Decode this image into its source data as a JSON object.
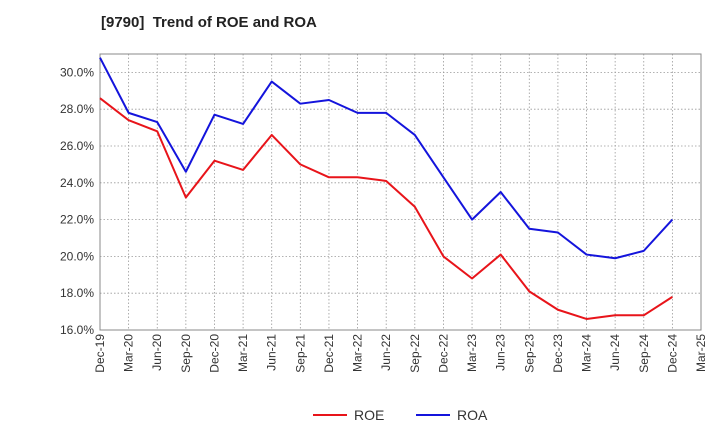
{
  "chart_data": {
    "type": "line",
    "title": "[9790]  Trend of ROE and ROA",
    "x": [
      "Dec-19",
      "Mar-20",
      "Jun-20",
      "Sep-20",
      "Dec-20",
      "Mar-21",
      "Jun-21",
      "Sep-21",
      "Dec-21",
      "Mar-22",
      "Jun-22",
      "Sep-22",
      "Dec-22",
      "Mar-23",
      "Jun-23",
      "Sep-23",
      "Dec-23",
      "Mar-24",
      "Jun-24",
      "Sep-24",
      "Dec-24",
      "Mar-25"
    ],
    "ylim": [
      16.0,
      31.0
    ],
    "yticks": [
      16.0,
      18.0,
      20.0,
      22.0,
      24.0,
      26.0,
      28.0,
      30.0
    ],
    "ytick_labels": [
      "16.0%",
      "18.0%",
      "20.0%",
      "22.0%",
      "24.0%",
      "26.0%",
      "28.0%",
      "30.0%"
    ],
    "grid": true,
    "legend": "bottom",
    "series": [
      {
        "name": "ROE",
        "color": "#e8141a",
        "values": [
          28.6,
          27.4,
          26.8,
          23.2,
          25.2,
          24.7,
          26.6,
          25.0,
          24.3,
          24.3,
          24.1,
          22.7,
          20.0,
          18.8,
          20.1,
          18.1,
          17.1,
          16.6,
          16.8,
          16.8,
          17.8,
          null
        ]
      },
      {
        "name": "ROA",
        "color": "#1414dc",
        "values": [
          30.8,
          27.8,
          27.3,
          24.6,
          27.7,
          27.2,
          29.5,
          28.3,
          28.5,
          27.8,
          27.8,
          26.6,
          24.3,
          22.0,
          23.5,
          21.5,
          21.3,
          20.1,
          19.9,
          20.3,
          22.0,
          null
        ]
      }
    ]
  }
}
